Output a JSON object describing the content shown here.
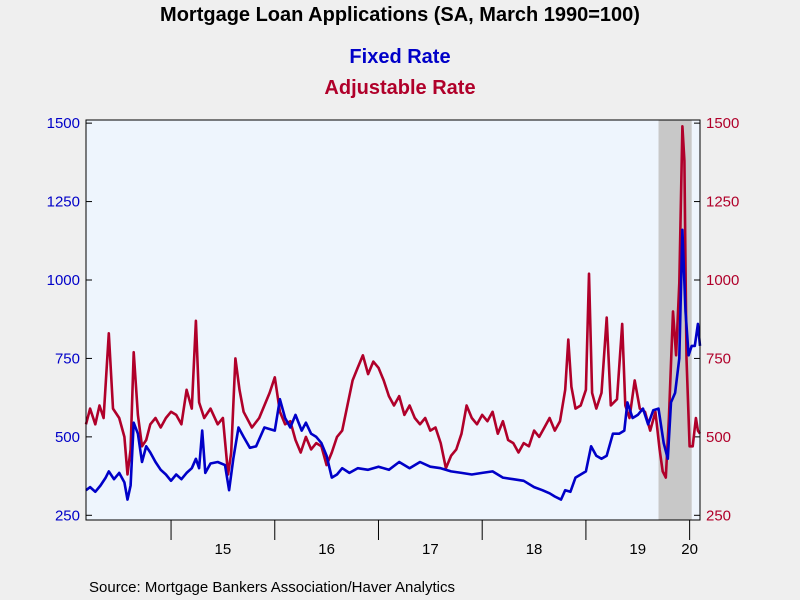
{
  "chart_data": {
    "type": "line",
    "title": "Mortgage Loan Applications (SA, March 1990=100)",
    "source": "Source:  Mortgage Bankers Association/Haver Analytics",
    "colors": {
      "fixed": "#0000c8",
      "adjustable": "#b0002a",
      "plot_background": "#eef5fd",
      "page_background": "#efefef",
      "shading": "#c8c8c8"
    },
    "x_range": [
      2014.18,
      2020.1
    ],
    "y_range": [
      235,
      1510
    ],
    "y_ticks": [
      "250",
      "500",
      "750",
      "1000",
      "1250",
      "1500"
    ],
    "y_tick_values": [
      250,
      500,
      750,
      1000,
      1250,
      1500
    ],
    "x_tick_labels": [
      "15",
      "16",
      "17",
      "18",
      "19",
      "20"
    ],
    "x_tick_label_positions": [
      2015.5,
      2016.5,
      2017.5,
      2018.5,
      2019.5,
      2020.0
    ],
    "year_boundaries": [
      2015,
      2016,
      2017,
      2018,
      2019,
      2020
    ],
    "shaded_region": [
      2019.7,
      2020.02
    ],
    "series": [
      {
        "name": "Fixed Rate",
        "axis": "left",
        "points": [
          [
            2014.18,
            330
          ],
          [
            2014.22,
            340
          ],
          [
            2014.27,
            325
          ],
          [
            2014.32,
            345
          ],
          [
            2014.37,
            370
          ],
          [
            2014.4,
            390
          ],
          [
            2014.45,
            365
          ],
          [
            2014.5,
            385
          ],
          [
            2014.55,
            355
          ],
          [
            2014.58,
            300
          ],
          [
            2014.61,
            345
          ],
          [
            2014.64,
            545
          ],
          [
            2014.68,
            510
          ],
          [
            2014.72,
            420
          ],
          [
            2014.76,
            470
          ],
          [
            2014.8,
            450
          ],
          [
            2014.85,
            420
          ],
          [
            2014.9,
            395
          ],
          [
            2014.95,
            380
          ],
          [
            2015.0,
            360
          ],
          [
            2015.05,
            380
          ],
          [
            2015.1,
            365
          ],
          [
            2015.15,
            385
          ],
          [
            2015.2,
            400
          ],
          [
            2015.24,
            430
          ],
          [
            2015.27,
            400
          ],
          [
            2015.3,
            520
          ],
          [
            2015.33,
            385
          ],
          [
            2015.38,
            415
          ],
          [
            2015.45,
            420
          ],
          [
            2015.52,
            410
          ],
          [
            2015.56,
            330
          ],
          [
            2015.6,
            430
          ],
          [
            2015.65,
            530
          ],
          [
            2015.7,
            500
          ],
          [
            2015.76,
            465
          ],
          [
            2015.82,
            470
          ],
          [
            2015.9,
            530
          ],
          [
            2016.0,
            520
          ],
          [
            2016.05,
            620
          ],
          [
            2016.1,
            560
          ],
          [
            2016.15,
            530
          ],
          [
            2016.2,
            570
          ],
          [
            2016.26,
            520
          ],
          [
            2016.3,
            545
          ],
          [
            2016.35,
            510
          ],
          [
            2016.4,
            500
          ],
          [
            2016.45,
            480
          ],
          [
            2016.5,
            440
          ],
          [
            2016.55,
            370
          ],
          [
            2016.6,
            380
          ],
          [
            2016.65,
            400
          ],
          [
            2016.72,
            385
          ],
          [
            2016.8,
            400
          ],
          [
            2016.9,
            395
          ],
          [
            2017.0,
            405
          ],
          [
            2017.1,
            395
          ],
          [
            2017.2,
            420
          ],
          [
            2017.3,
            400
          ],
          [
            2017.4,
            420
          ],
          [
            2017.5,
            405
          ],
          [
            2017.6,
            400
          ],
          [
            2017.7,
            390
          ],
          [
            2017.8,
            385
          ],
          [
            2017.9,
            380
          ],
          [
            2018.0,
            385
          ],
          [
            2018.1,
            390
          ],
          [
            2018.2,
            370
          ],
          [
            2018.3,
            365
          ],
          [
            2018.4,
            360
          ],
          [
            2018.5,
            340
          ],
          [
            2018.58,
            330
          ],
          [
            2018.65,
            320
          ],
          [
            2018.7,
            310
          ],
          [
            2018.76,
            300
          ],
          [
            2018.8,
            330
          ],
          [
            2018.85,
            325
          ],
          [
            2018.9,
            370
          ],
          [
            2018.95,
            380
          ],
          [
            2019.0,
            390
          ],
          [
            2019.05,
            470
          ],
          [
            2019.1,
            440
          ],
          [
            2019.15,
            430
          ],
          [
            2019.2,
            440
          ],
          [
            2019.26,
            510
          ],
          [
            2019.32,
            510
          ],
          [
            2019.37,
            520
          ],
          [
            2019.4,
            610
          ],
          [
            2019.45,
            560
          ],
          [
            2019.5,
            570
          ],
          [
            2019.55,
            590
          ],
          [
            2019.6,
            540
          ],
          [
            2019.65,
            585
          ],
          [
            2019.7,
            590
          ],
          [
            2019.75,
            480
          ],
          [
            2019.79,
            430
          ],
          [
            2019.82,
            610
          ],
          [
            2019.86,
            640
          ],
          [
            2019.9,
            750
          ],
          [
            2019.93,
            1160
          ],
          [
            2019.96,
            900
          ],
          [
            2019.99,
            760
          ],
          [
            2020.02,
            790
          ],
          [
            2020.05,
            790
          ],
          [
            2020.08,
            860
          ],
          [
            2020.1,
            790
          ]
        ]
      },
      {
        "name": "Adjustable Rate",
        "axis": "right",
        "points": [
          [
            2014.18,
            540
          ],
          [
            2014.22,
            590
          ],
          [
            2014.27,
            540
          ],
          [
            2014.31,
            600
          ],
          [
            2014.35,
            560
          ],
          [
            2014.4,
            830
          ],
          [
            2014.44,
            590
          ],
          [
            2014.5,
            560
          ],
          [
            2014.55,
            500
          ],
          [
            2014.58,
            380
          ],
          [
            2014.61,
            460
          ],
          [
            2014.64,
            770
          ],
          [
            2014.68,
            570
          ],
          [
            2014.72,
            470
          ],
          [
            2014.76,
            490
          ],
          [
            2014.8,
            540
          ],
          [
            2014.85,
            560
          ],
          [
            2014.9,
            530
          ],
          [
            2014.95,
            560
          ],
          [
            2015.0,
            580
          ],
          [
            2015.05,
            570
          ],
          [
            2015.1,
            540
          ],
          [
            2015.15,
            650
          ],
          [
            2015.2,
            590
          ],
          [
            2015.24,
            870
          ],
          [
            2015.27,
            610
          ],
          [
            2015.32,
            560
          ],
          [
            2015.38,
            590
          ],
          [
            2015.45,
            540
          ],
          [
            2015.5,
            560
          ],
          [
            2015.55,
            380
          ],
          [
            2015.58,
            450
          ],
          [
            2015.62,
            750
          ],
          [
            2015.66,
            650
          ],
          [
            2015.7,
            580
          ],
          [
            2015.78,
            530
          ],
          [
            2015.85,
            560
          ],
          [
            2015.95,
            640
          ],
          [
            2016.0,
            690
          ],
          [
            2016.05,
            580
          ],
          [
            2016.1,
            540
          ],
          [
            2016.15,
            550
          ],
          [
            2016.2,
            490
          ],
          [
            2016.25,
            450
          ],
          [
            2016.3,
            500
          ],
          [
            2016.35,
            460
          ],
          [
            2016.4,
            480
          ],
          [
            2016.45,
            470
          ],
          [
            2016.5,
            410
          ],
          [
            2016.55,
            450
          ],
          [
            2016.6,
            500
          ],
          [
            2016.65,
            520
          ],
          [
            2016.7,
            600
          ],
          [
            2016.75,
            680
          ],
          [
            2016.8,
            720
          ],
          [
            2016.85,
            760
          ],
          [
            2016.9,
            700
          ],
          [
            2016.95,
            740
          ],
          [
            2017.0,
            720
          ],
          [
            2017.05,
            680
          ],
          [
            2017.1,
            630
          ],
          [
            2017.15,
            600
          ],
          [
            2017.2,
            630
          ],
          [
            2017.25,
            570
          ],
          [
            2017.3,
            600
          ],
          [
            2017.35,
            560
          ],
          [
            2017.4,
            540
          ],
          [
            2017.45,
            560
          ],
          [
            2017.5,
            520
          ],
          [
            2017.55,
            530
          ],
          [
            2017.6,
            480
          ],
          [
            2017.65,
            400
          ],
          [
            2017.7,
            440
          ],
          [
            2017.75,
            460
          ],
          [
            2017.8,
            510
          ],
          [
            2017.85,
            600
          ],
          [
            2017.9,
            560
          ],
          [
            2017.95,
            540
          ],
          [
            2018.0,
            570
          ],
          [
            2018.05,
            550
          ],
          [
            2018.1,
            580
          ],
          [
            2018.15,
            510
          ],
          [
            2018.2,
            550
          ],
          [
            2018.25,
            490
          ],
          [
            2018.3,
            480
          ],
          [
            2018.35,
            450
          ],
          [
            2018.4,
            480
          ],
          [
            2018.45,
            470
          ],
          [
            2018.5,
            520
          ],
          [
            2018.55,
            500
          ],
          [
            2018.6,
            530
          ],
          [
            2018.65,
            560
          ],
          [
            2018.7,
            520
          ],
          [
            2018.75,
            550
          ],
          [
            2018.8,
            650
          ],
          [
            2018.83,
            810
          ],
          [
            2018.86,
            660
          ],
          [
            2018.9,
            590
          ],
          [
            2018.95,
            600
          ],
          [
            2019.0,
            650
          ],
          [
            2019.03,
            1020
          ],
          [
            2019.06,
            640
          ],
          [
            2019.1,
            590
          ],
          [
            2019.15,
            640
          ],
          [
            2019.2,
            880
          ],
          [
            2019.24,
            600
          ],
          [
            2019.3,
            620
          ],
          [
            2019.35,
            860
          ],
          [
            2019.38,
            600
          ],
          [
            2019.42,
            560
          ],
          [
            2019.47,
            680
          ],
          [
            2019.52,
            590
          ],
          [
            2019.57,
            580
          ],
          [
            2019.62,
            520
          ],
          [
            2019.67,
            580
          ],
          [
            2019.71,
            460
          ],
          [
            2019.74,
            390
          ],
          [
            2019.77,
            370
          ],
          [
            2019.8,
            560
          ],
          [
            2019.84,
            900
          ],
          [
            2019.87,
            760
          ],
          [
            2019.9,
            990
          ],
          [
            2019.93,
            1490
          ],
          [
            2019.95,
            1380
          ],
          [
            2019.97,
            750
          ],
          [
            2020.0,
            470
          ],
          [
            2020.03,
            470
          ],
          [
            2020.06,
            560
          ],
          [
            2020.08,
            520
          ],
          [
            2020.1,
            510
          ]
        ]
      }
    ]
  }
}
